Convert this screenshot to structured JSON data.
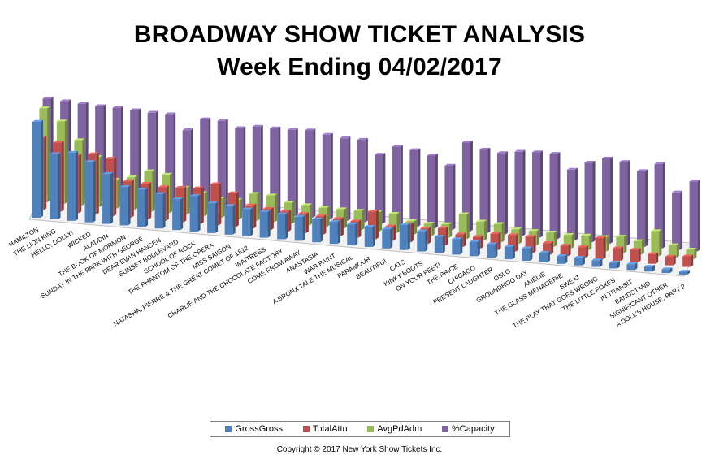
{
  "title": "BROADWAY SHOW TICKET ANALYSIS",
  "subtitle": "Week Ending 04/02/2017",
  "copyright": "Copyright © 2017 New York Show Tickets Inc.",
  "colors": {
    "GrossGross": "#4F81BD",
    "TotalAttn": "#C0504D",
    "AvgPdAdm": "#9BBB59",
    "%Capacity": "#8064A2"
  },
  "chart_data": {
    "type": "bar",
    "title": "BROADWAY SHOW TICKET ANALYSIS",
    "subtitle": "Week Ending 04/02/2017",
    "view": "3D clustered columns",
    "legend_position": "bottom",
    "grid": false,
    "categories": [
      "HAMILTON",
      "THE LION KING",
      "HELLO, DOLLY!",
      "WICKED",
      "ALADDIN",
      "THE BOOK OF MORMON",
      "SUNDAY IN THE PARK WITH GEORGE",
      "DEAR EVAN HANSEN",
      "SUNSET BOULEVARD",
      "SCHOOL OF ROCK",
      "THE PHANTOM OF THE OPERA",
      "MISS SAIGON",
      "NATASHA, PIERRE & THE GREAT COMET OF 1812",
      "WAITRESS",
      "CHARLIE AND THE CHOCOLATE FACTORY",
      "COME FROM AWAY",
      "ANASTASIA",
      "WAR PAINT",
      "A BRONX TALE THE MUSICAL",
      "PARAMOUR",
      "BEAUTIFUL",
      "CATS",
      "KINKY BOOTS",
      "ON YOUR FEET!",
      "THE PRICE",
      "CHICAGO",
      "PRESENT LAUGHTER",
      "OSLO",
      "GROUNDHOG DAY",
      "AMÉLIE",
      "THE GLASS MENAGERIE",
      "SWEAT",
      "THE PLAY THAT GOES WRONG",
      "THE LITTLE FOXES",
      "IN TRANSIT",
      "BANDSTAND",
      "SIGNIFICANT OTHER",
      "A DOLL'S HOUSE, PART 2"
    ],
    "series": [
      {
        "name": "GrossGross",
        "values": [
          1.0,
          0.68,
          0.71,
          0.63,
          0.52,
          0.4,
          0.39,
          0.36,
          0.32,
          0.37,
          0.31,
          0.3,
          0.28,
          0.27,
          0.26,
          0.25,
          0.24,
          0.23,
          0.22,
          0.21,
          0.2,
          0.26,
          0.21,
          0.17,
          0.16,
          0.15,
          0.14,
          0.13,
          0.13,
          0.1,
          0.08,
          0.08,
          0.07,
          0.06,
          0.06,
          0.05,
          0.04,
          0.03
        ]
      },
      {
        "name": "TotalAttn",
        "values": [
          0.75,
          0.72,
          0.6,
          0.63,
          0.6,
          0.38,
          0.37,
          0.35,
          0.36,
          0.37,
          0.43,
          0.35,
          0.24,
          0.22,
          0.21,
          0.2,
          0.19,
          0.18,
          0.17,
          0.29,
          0.15,
          0.19,
          0.16,
          0.18,
          0.13,
          0.12,
          0.17,
          0.17,
          0.17,
          0.12,
          0.11,
          0.11,
          0.22,
          0.13,
          0.13,
          0.1,
          0.09,
          0.11
        ]
      },
      {
        "name": "AvgPdAdm",
        "values": [
          0.98,
          0.86,
          0.68,
          0.52,
          0.3,
          0.34,
          0.42,
          0.4,
          0.28,
          0.24,
          0.2,
          0.2,
          0.28,
          0.28,
          0.22,
          0.21,
          0.2,
          0.2,
          0.2,
          0.2,
          0.2,
          0.14,
          0.13,
          0.14,
          0.26,
          0.2,
          0.19,
          0.15,
          0.15,
          0.15,
          0.14,
          0.15,
          0.15,
          0.17,
          0.14,
          0.26,
          0.13,
          0.1
        ]
      },
      {
        "name": "%Capacity",
        "values": [
          1.0,
          0.99,
          0.98,
          0.97,
          0.97,
          0.96,
          0.95,
          0.95,
          0.8,
          0.93,
          0.93,
          0.87,
          0.9,
          0.9,
          0.9,
          0.91,
          0.88,
          0.86,
          0.86,
          0.72,
          0.82,
          0.8,
          0.76,
          0.67,
          0.93,
          0.87,
          0.85,
          0.88,
          0.89,
          0.89,
          0.74,
          0.83,
          0.89,
          0.87,
          0.79,
          0.88,
          0.6,
          0.73
        ]
      }
    ]
  }
}
